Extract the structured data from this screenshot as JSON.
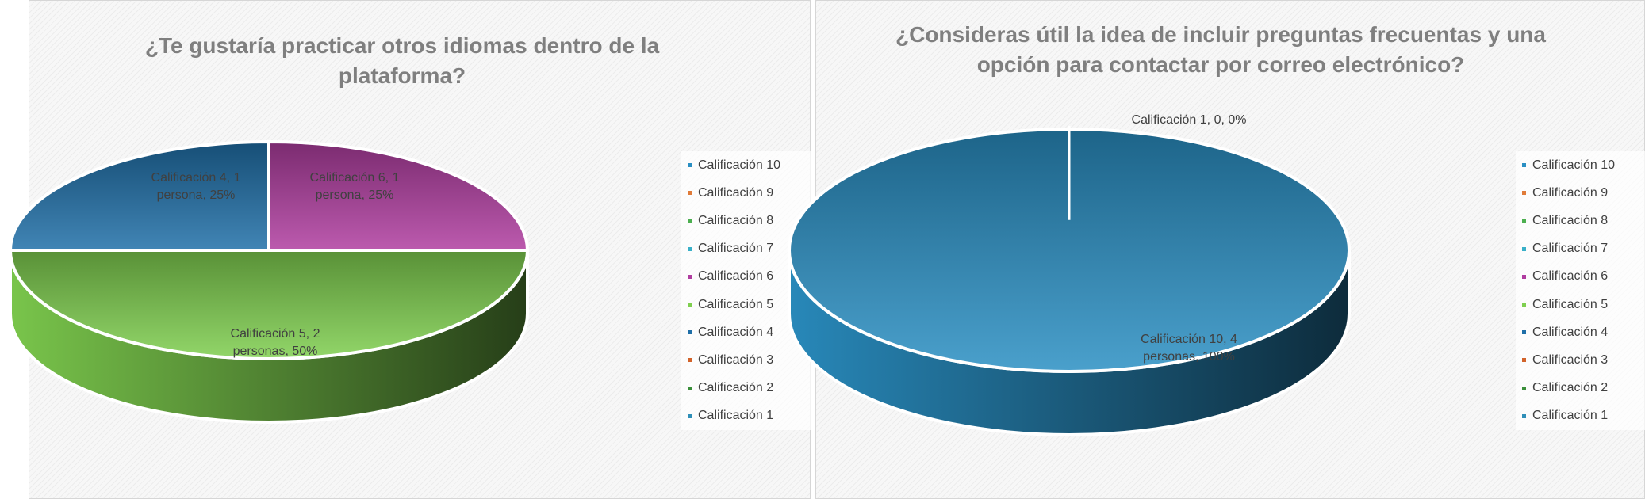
{
  "chart_data": [
    {
      "type": "pie",
      "title": "¿Te gustaría practicar otros idiomas dentro de la plataforma?",
      "categories": [
        "Calificación 10",
        "Calificación 9",
        "Calificación 8",
        "Calificación 7",
        "Calificación 6",
        "Calificación 5",
        "Calificación 4",
        "Calificación 3",
        "Calificación 2",
        "Calificación 1"
      ],
      "values": [
        0,
        0,
        0,
        0,
        1,
        2,
        1,
        0,
        0,
        0
      ],
      "colors": [
        "#2a8fc3",
        "#e07b39",
        "#4caf50",
        "#39b0c8",
        "#b03da0",
        "#7fcf4f",
        "#1f6fa8",
        "#d2632a",
        "#3a8f3a",
        "#2f8fb8"
      ],
      "data_labels": [
        {
          "category": "Calificación 4",
          "lines": [
            "Calificación 4, 1",
            "persona, 25%"
          ]
        },
        {
          "category": "Calificación 6",
          "lines": [
            "Calificación 6, 1",
            "persona, 25%"
          ]
        },
        {
          "category": "Calificación 5",
          "lines": [
            "Calificación 5, 2",
            "personas, 50%"
          ]
        }
      ],
      "legend_position": "right",
      "style": "3d"
    },
    {
      "type": "pie",
      "title": "¿Consideras útil la idea de incluir preguntas frecuentas y una opción para contactar por correo electrónico?",
      "categories": [
        "Calificación 10",
        "Calificación 9",
        "Calificación 8",
        "Calificación 7",
        "Calificación 6",
        "Calificación 5",
        "Calificación 4",
        "Calificación 3",
        "Calificación 2",
        "Calificación 1"
      ],
      "values": [
        4,
        0,
        0,
        0,
        0,
        0,
        0,
        0,
        0,
        0
      ],
      "colors": [
        "#2a8fc3",
        "#e07b39",
        "#4caf50",
        "#39b0c8",
        "#b03da0",
        "#7fcf4f",
        "#1f6fa8",
        "#d2632a",
        "#3a8f3a",
        "#2f8fb8"
      ],
      "data_labels": [
        {
          "category": "Calificación 1",
          "lines": [
            "Calificación 1, 0, 0%"
          ]
        },
        {
          "category": "Calificación 10",
          "lines": [
            "Calificación 10, 4",
            "personas, 100%"
          ]
        }
      ],
      "legend_position": "right",
      "style": "3d"
    }
  ]
}
